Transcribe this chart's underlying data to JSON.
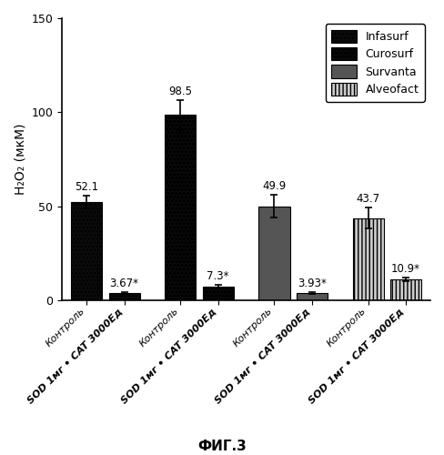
{
  "groups": [
    {
      "label": "Infasurf",
      "bars": [
        {
          "value": 52.1,
          "error": 3.5,
          "annotation": "52.1"
        },
        {
          "value": 3.67,
          "error": 0.4,
          "annotation": "3.67*"
        }
      ],
      "hatch": "....",
      "facecolor": "#111111"
    },
    {
      "label": "Curosurf",
      "bars": [
        {
          "value": 98.5,
          "error": 8.0,
          "annotation": "98.5"
        },
        {
          "value": 7.3,
          "error": 0.7,
          "annotation": "7.3*"
        }
      ],
      "hatch": "oooo",
      "facecolor": "#111111"
    },
    {
      "label": "Survanta",
      "bars": [
        {
          "value": 49.9,
          "error": 6.0,
          "annotation": "49.9"
        },
        {
          "value": 3.93,
          "error": 0.4,
          "annotation": "3.93*"
        }
      ],
      "hatch": "====",
      "facecolor": "#111111"
    },
    {
      "label": "Alveofact",
      "bars": [
        {
          "value": 43.7,
          "error": 5.5,
          "annotation": "43.7"
        },
        {
          "value": 10.9,
          "error": 1.0,
          "annotation": "10.9*"
        }
      ],
      "hatch": "||||",
      "facecolor": "#dddddd"
    }
  ],
  "ylabel": "H₂O₂ (мкМ)",
  "ylim": [
    0,
    150
  ],
  "yticks": [
    0,
    50,
    100,
    150
  ],
  "xlabel_kontrol": "Контроль",
  "xlabel_sod_prefix": "SOD 1мг • CAT 3000Ед",
  "figure_label": "ФИГ.3",
  "bar_width": 0.38,
  "background_color": "white",
  "edge_color": "black",
  "annotation_fontsize": 8.5,
  "tick_fontsize": 8,
  "ylabel_fontsize": 10
}
